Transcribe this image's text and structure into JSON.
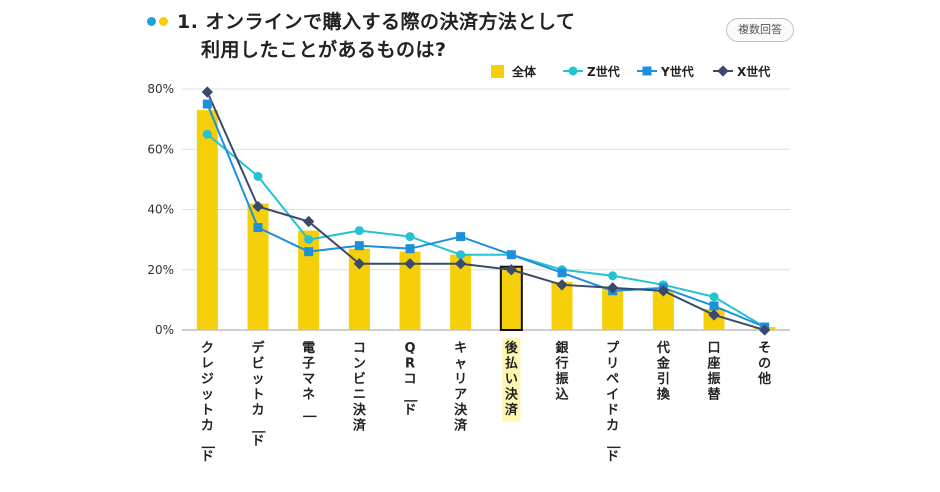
{
  "header": {
    "title_line1": "1. オンラインで購入する際の決済方法として",
    "title_line2": "利用したことがあるものは?",
    "badge": "複数回答"
  },
  "colors": {
    "bar": "#f5cf0a",
    "z": "#23c3d3",
    "y": "#1f8fdc",
    "x": "#3b4a6b",
    "highlight_fill": "#fff6b0",
    "dot_blue": "#1fa2d8",
    "dot_yellow": "#f5cf0a"
  },
  "chart_data": {
    "type": "bar",
    "categories": [
      "クレジットカード",
      "デビットカード",
      "電子マネー",
      "コンビニ決済",
      "QRコード",
      "キャリア決済",
      "後払い決済",
      "銀行振込",
      "プリペイドカード",
      "代金引換",
      "口座振替",
      "その他"
    ],
    "highlight_category": "後払い決済",
    "series": [
      {
        "name": "全体",
        "type": "bar",
        "values": [
          73,
          42,
          33,
          27,
          26,
          25,
          21,
          16,
          14,
          13,
          7,
          1
        ]
      },
      {
        "name": "Z世代",
        "type": "line",
        "marker": "circle",
        "values": [
          65,
          51,
          30,
          33,
          31,
          25,
          25,
          20,
          18,
          15,
          11,
          1
        ]
      },
      {
        "name": "Y世代",
        "type": "line",
        "marker": "square",
        "values": [
          75,
          34,
          26,
          28,
          27,
          31,
          25,
          19,
          13,
          14,
          8,
          1
        ]
      },
      {
        "name": "X世代",
        "type": "line",
        "marker": "diamond",
        "values": [
          79,
          41,
          36,
          22,
          22,
          22,
          20,
          15,
          14,
          13,
          5,
          0
        ]
      }
    ],
    "ylim": [
      0,
      80
    ],
    "yticks": [
      0,
      20,
      40,
      60,
      80
    ],
    "ytick_labels": [
      "0%",
      "20%",
      "40%",
      "60%",
      "80%"
    ],
    "grid": true,
    "legend_position": "top-right"
  }
}
